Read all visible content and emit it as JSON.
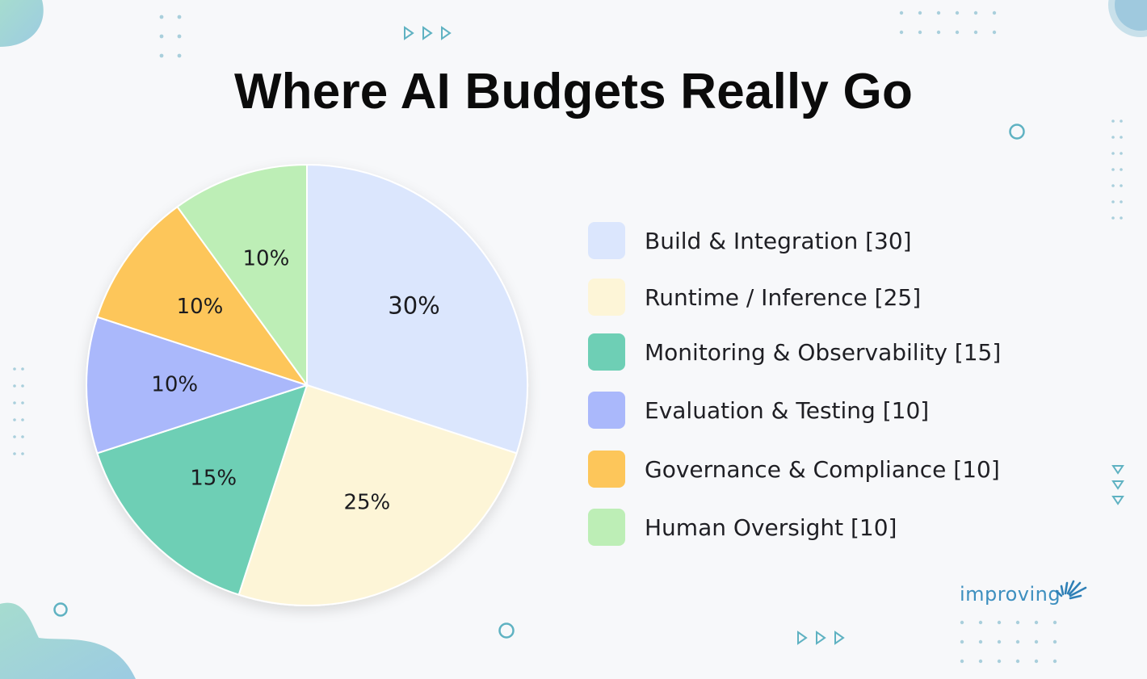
{
  "title": "Where AI Budgets Really Go",
  "chart_data": {
    "type": "pie",
    "slices": [
      {
        "label": "Build & Integration [30]",
        "value": 30,
        "display": "30%",
        "color": "#dbe6fd"
      },
      {
        "label": "Runtime / Inference [25]",
        "value": 25,
        "display": "25%",
        "color": "#fdf5d7"
      },
      {
        "label": "Monitoring & Observability [15]",
        "value": 15,
        "display": "15%",
        "color": "#6ecfb5"
      },
      {
        "label": "Evaluation & Testing [10]",
        "value": 10,
        "display": "10%",
        "color": "#aab8fb"
      },
      {
        "label": "Governance & Compliance [10]",
        "value": 10,
        "display": "10%",
        "color": "#fdc65a"
      },
      {
        "label": "Human Oversight [10]",
        "value": 10,
        "display": "10%",
        "color": "#bdeeb6"
      }
    ],
    "legend_position": "right"
  },
  "logo": {
    "text": "improving"
  },
  "colors": {
    "logo": "#3d8fbf",
    "decor": "#7ec3d1"
  }
}
